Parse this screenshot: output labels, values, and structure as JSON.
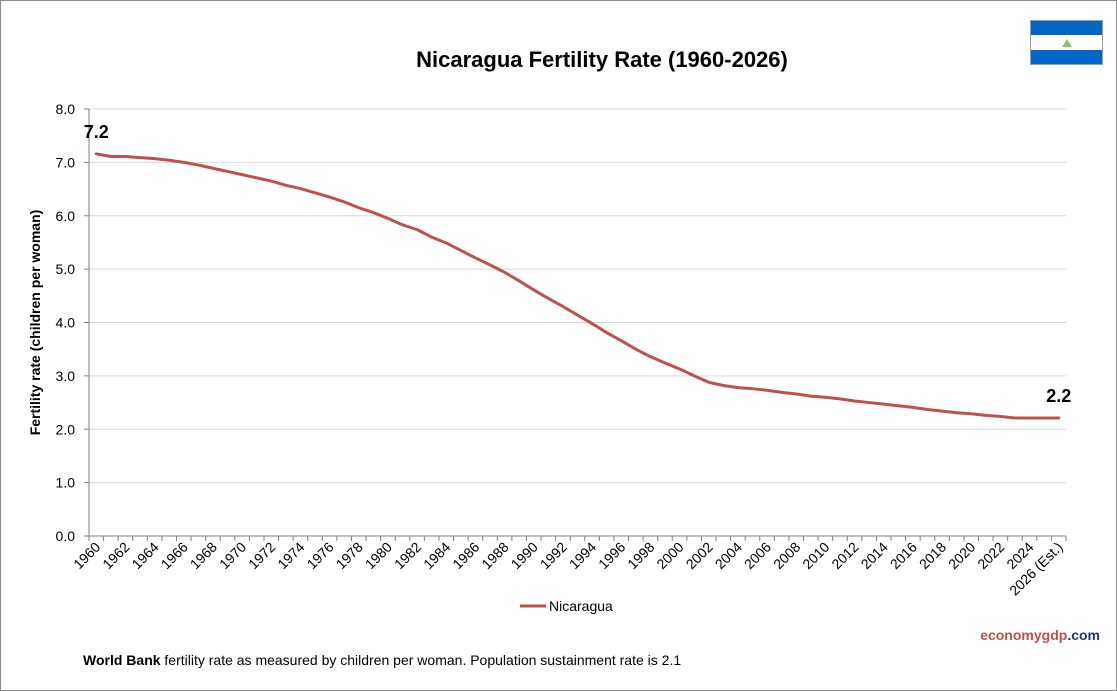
{
  "chart_data": {
    "type": "line",
    "title": "Nicaragua Fertility Rate (1960-2026)",
    "xlabel": "",
    "ylabel": "Fertility rate (children per woman)",
    "ylim": [
      0,
      8
    ],
    "yticks": [
      "0.0",
      "1.0",
      "2.0",
      "3.0",
      "4.0",
      "5.0",
      "6.0",
      "7.0",
      "8.0"
    ],
    "grid": true,
    "legend_position": "bottom",
    "x": [
      1960,
      1961,
      1962,
      1963,
      1964,
      1965,
      1966,
      1967,
      1968,
      1969,
      1970,
      1971,
      1972,
      1973,
      1974,
      1975,
      1976,
      1977,
      1978,
      1979,
      1980,
      1981,
      1982,
      1983,
      1984,
      1985,
      1986,
      1987,
      1988,
      1989,
      1990,
      1991,
      1992,
      1993,
      1994,
      1995,
      1996,
      1997,
      1998,
      1999,
      2000,
      2001,
      2002,
      2003,
      2004,
      2005,
      2006,
      2007,
      2008,
      2009,
      2010,
      2011,
      2012,
      2013,
      2014,
      2015,
      2016,
      2017,
      2018,
      2019,
      2020,
      2021,
      2022,
      2023,
      2024,
      2025,
      2026
    ],
    "xtick_labels": [
      "1960",
      "1962",
      "1964",
      "1966",
      "1968",
      "1970",
      "1972",
      "1974",
      "1976",
      "1978",
      "1980",
      "1982",
      "1984",
      "1986",
      "1988",
      "1990",
      "1992",
      "1994",
      "1996",
      "1998",
      "2000",
      "2002",
      "2004",
      "2006",
      "2008",
      "2010",
      "2012",
      "2014",
      "2016",
      "2018",
      "2020",
      "2022",
      "2024",
      "2026 (Est.)"
    ],
    "series": [
      {
        "name": "Nicaragua",
        "color": "#c0504d",
        "values": [
          7.16,
          7.11,
          7.11,
          7.09,
          7.07,
          7.04,
          7.0,
          6.95,
          6.89,
          6.83,
          6.77,
          6.71,
          6.65,
          6.57,
          6.51,
          6.43,
          6.35,
          6.26,
          6.15,
          6.06,
          5.95,
          5.83,
          5.74,
          5.6,
          5.49,
          5.35,
          5.21,
          5.08,
          4.94,
          4.78,
          4.61,
          4.45,
          4.3,
          4.14,
          3.98,
          3.81,
          3.66,
          3.5,
          3.36,
          3.24,
          3.13,
          3.0,
          2.88,
          2.82,
          2.78,
          2.76,
          2.73,
          2.69,
          2.66,
          2.62,
          2.6,
          2.57,
          2.53,
          2.5,
          2.47,
          2.44,
          2.41,
          2.37,
          2.34,
          2.31,
          2.29,
          2.26,
          2.24,
          2.21,
          2.21,
          2.21,
          2.21
        ]
      }
    ],
    "annotations": [
      {
        "x": 1960,
        "text": "7.2"
      },
      {
        "x": 2026,
        "text": "2.2"
      }
    ]
  },
  "source_note": {
    "source_name": "World Bank",
    "text": " fertility rate as measured by children per woman.  Population sustainment rate is 2.1"
  },
  "brand": {
    "part1": "economy",
    "part2": "gdp",
    "part3": ".com"
  },
  "flag": {
    "colors": [
      "#0067c6",
      "#ffffff",
      "#0067c6"
    ]
  }
}
